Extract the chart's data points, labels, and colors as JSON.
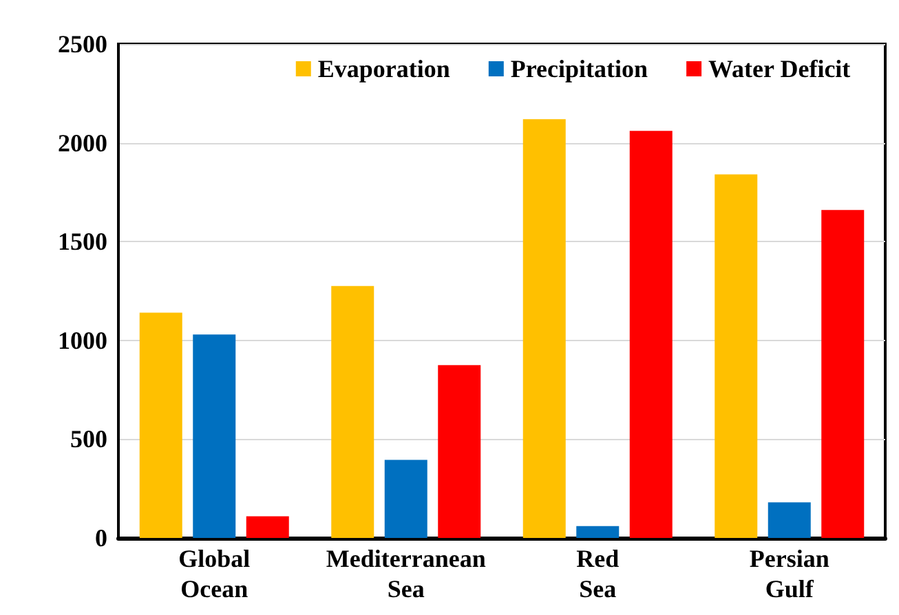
{
  "chart_data": {
    "type": "bar",
    "categories": [
      "Global\nOcean",
      "Mediterranean\nSea",
      "Red\nSea",
      "Persian\nGulf"
    ],
    "series": [
      {
        "name": "Evaporation",
        "color": "#ffc000",
        "values": [
          1140,
          1275,
          2120,
          1840
        ]
      },
      {
        "name": "Precipitation",
        "color": "#0070c0",
        "values": [
          1030,
          395,
          60,
          180
        ]
      },
      {
        "name": "Water Deficit",
        "color": "#ff0000",
        "values": [
          110,
          875,
          2060,
          1660
        ]
      }
    ],
    "ylim": [
      0,
      2500
    ],
    "yticks": [
      0,
      500,
      1000,
      1500,
      2000,
      2500
    ],
    "grid": "y",
    "legend": "top right"
  }
}
